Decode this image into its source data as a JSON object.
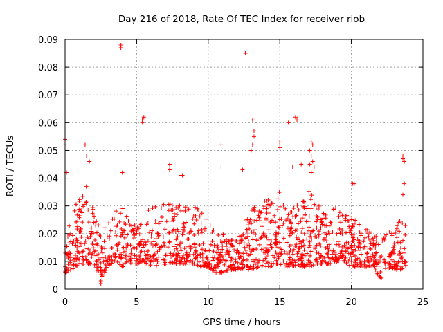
{
  "chart_data": {
    "type": "scatter",
    "title": "Day 216 of 2018, Rate Of TEC Index for receiver riob",
    "xlabel": "GPS time / hours",
    "ylabel": "ROTI / TECUs",
    "xlim": [
      0,
      25
    ],
    "ylim": [
      0,
      0.09
    ],
    "x_ticks": [
      0,
      5,
      10,
      15,
      20,
      25
    ],
    "x_tick_labels": [
      "0",
      "5",
      "10",
      "15",
      "20",
      "25"
    ],
    "y_ticks": [
      0,
      0.01,
      0.02,
      0.03,
      0.04,
      0.05,
      0.06,
      0.07,
      0.08,
      0.09
    ],
    "y_tick_labels": [
      "0",
      "0.01",
      "0.02",
      "0.03",
      "0.04",
      "0.05",
      "0.06",
      "0.07",
      "0.08",
      "0.09"
    ],
    "grid": true,
    "marker": "+",
    "marker_color": "#ff0000",
    "envelope": {
      "description_hours": "approximate band of dense points: x, low, high",
      "points": [
        [
          0.0,
          0.006,
          0.03
        ],
        [
          0.5,
          0.007,
          0.028
        ],
        [
          1.0,
          0.009,
          0.033
        ],
        [
          1.5,
          0.009,
          0.038
        ],
        [
          2.0,
          0.009,
          0.028
        ],
        [
          2.5,
          0.004,
          0.022
        ],
        [
          3.0,
          0.008,
          0.026
        ],
        [
          3.5,
          0.01,
          0.028
        ],
        [
          4.0,
          0.008,
          0.03
        ],
        [
          4.5,
          0.009,
          0.024
        ],
        [
          5.0,
          0.009,
          0.024
        ],
        [
          5.5,
          0.01,
          0.026
        ],
        [
          6.0,
          0.008,
          0.03
        ],
        [
          6.5,
          0.008,
          0.03
        ],
        [
          7.0,
          0.009,
          0.032
        ],
        [
          7.5,
          0.009,
          0.034
        ],
        [
          8.0,
          0.009,
          0.032
        ],
        [
          8.5,
          0.009,
          0.03
        ],
        [
          9.0,
          0.009,
          0.03
        ],
        [
          9.5,
          0.008,
          0.028
        ],
        [
          10.0,
          0.008,
          0.026
        ],
        [
          10.5,
          0.006,
          0.02
        ],
        [
          11.0,
          0.006,
          0.02
        ],
        [
          11.5,
          0.007,
          0.018
        ],
        [
          12.0,
          0.007,
          0.018
        ],
        [
          12.5,
          0.007,
          0.024
        ],
        [
          13.0,
          0.007,
          0.03
        ],
        [
          13.5,
          0.008,
          0.03
        ],
        [
          14.0,
          0.008,
          0.032
        ],
        [
          14.5,
          0.008,
          0.034
        ],
        [
          15.0,
          0.009,
          0.036
        ],
        [
          15.5,
          0.008,
          0.03
        ],
        [
          16.0,
          0.008,
          0.03
        ],
        [
          16.5,
          0.008,
          0.032
        ],
        [
          17.0,
          0.008,
          0.036
        ],
        [
          17.5,
          0.009,
          0.032
        ],
        [
          18.0,
          0.009,
          0.028
        ],
        [
          18.5,
          0.009,
          0.028
        ],
        [
          19.0,
          0.01,
          0.03
        ],
        [
          19.5,
          0.01,
          0.028
        ],
        [
          20.0,
          0.008,
          0.028
        ],
        [
          20.5,
          0.008,
          0.024
        ],
        [
          21.0,
          0.008,
          0.022
        ],
        [
          21.5,
          0.008,
          0.02
        ],
        [
          22.0,
          0.004,
          0.018
        ],
        [
          22.5,
          0.007,
          0.02
        ],
        [
          23.0,
          0.007,
          0.022
        ],
        [
          23.5,
          0.007,
          0.026
        ],
        [
          23.8,
          0.008,
          0.024
        ]
      ]
    },
    "notable_points": [
      [
        0.0,
        0.054
      ],
      [
        0.0,
        0.052
      ],
      [
        0.1,
        0.042
      ],
      [
        1.4,
        0.052
      ],
      [
        1.5,
        0.048
      ],
      [
        1.7,
        0.046
      ],
      [
        2.5,
        0.003
      ],
      [
        2.5,
        0.002
      ],
      [
        3.9,
        0.088
      ],
      [
        3.9,
        0.087
      ],
      [
        4.0,
        0.042
      ],
      [
        5.4,
        0.061
      ],
      [
        5.5,
        0.062
      ],
      [
        5.4,
        0.06
      ],
      [
        7.3,
        0.045
      ],
      [
        7.3,
        0.043
      ],
      [
        8.1,
        0.041
      ],
      [
        8.2,
        0.041
      ],
      [
        10.9,
        0.052
      ],
      [
        10.9,
        0.044
      ],
      [
        12.6,
        0.085
      ],
      [
        13.1,
        0.061
      ],
      [
        13.2,
        0.057
      ],
      [
        13.2,
        0.055
      ],
      [
        13.1,
        0.052
      ],
      [
        13.0,
        0.05
      ],
      [
        15.0,
        0.053
      ],
      [
        15.0,
        0.051
      ],
      [
        15.6,
        0.06
      ],
      [
        16.1,
        0.062
      ],
      [
        16.2,
        0.061
      ],
      [
        17.2,
        0.053
      ],
      [
        17.3,
        0.052
      ],
      [
        17.1,
        0.05
      ],
      [
        17.2,
        0.048
      ],
      [
        17.3,
        0.046
      ],
      [
        17.1,
        0.045
      ],
      [
        17.4,
        0.044
      ],
      [
        17.2,
        0.042
      ],
      [
        20.1,
        0.038
      ],
      [
        20.2,
        0.038
      ],
      [
        22.1,
        0.004
      ],
      [
        23.6,
        0.048
      ],
      [
        23.6,
        0.047
      ],
      [
        23.7,
        0.046
      ],
      [
        23.7,
        0.038
      ],
      [
        23.6,
        0.034
      ],
      [
        12.4,
        0.043
      ],
      [
        12.5,
        0.044
      ],
      [
        15.9,
        0.044
      ],
      [
        16.5,
        0.045
      ]
    ],
    "generated_point_count": 1500,
    "random_seed": 216
  }
}
